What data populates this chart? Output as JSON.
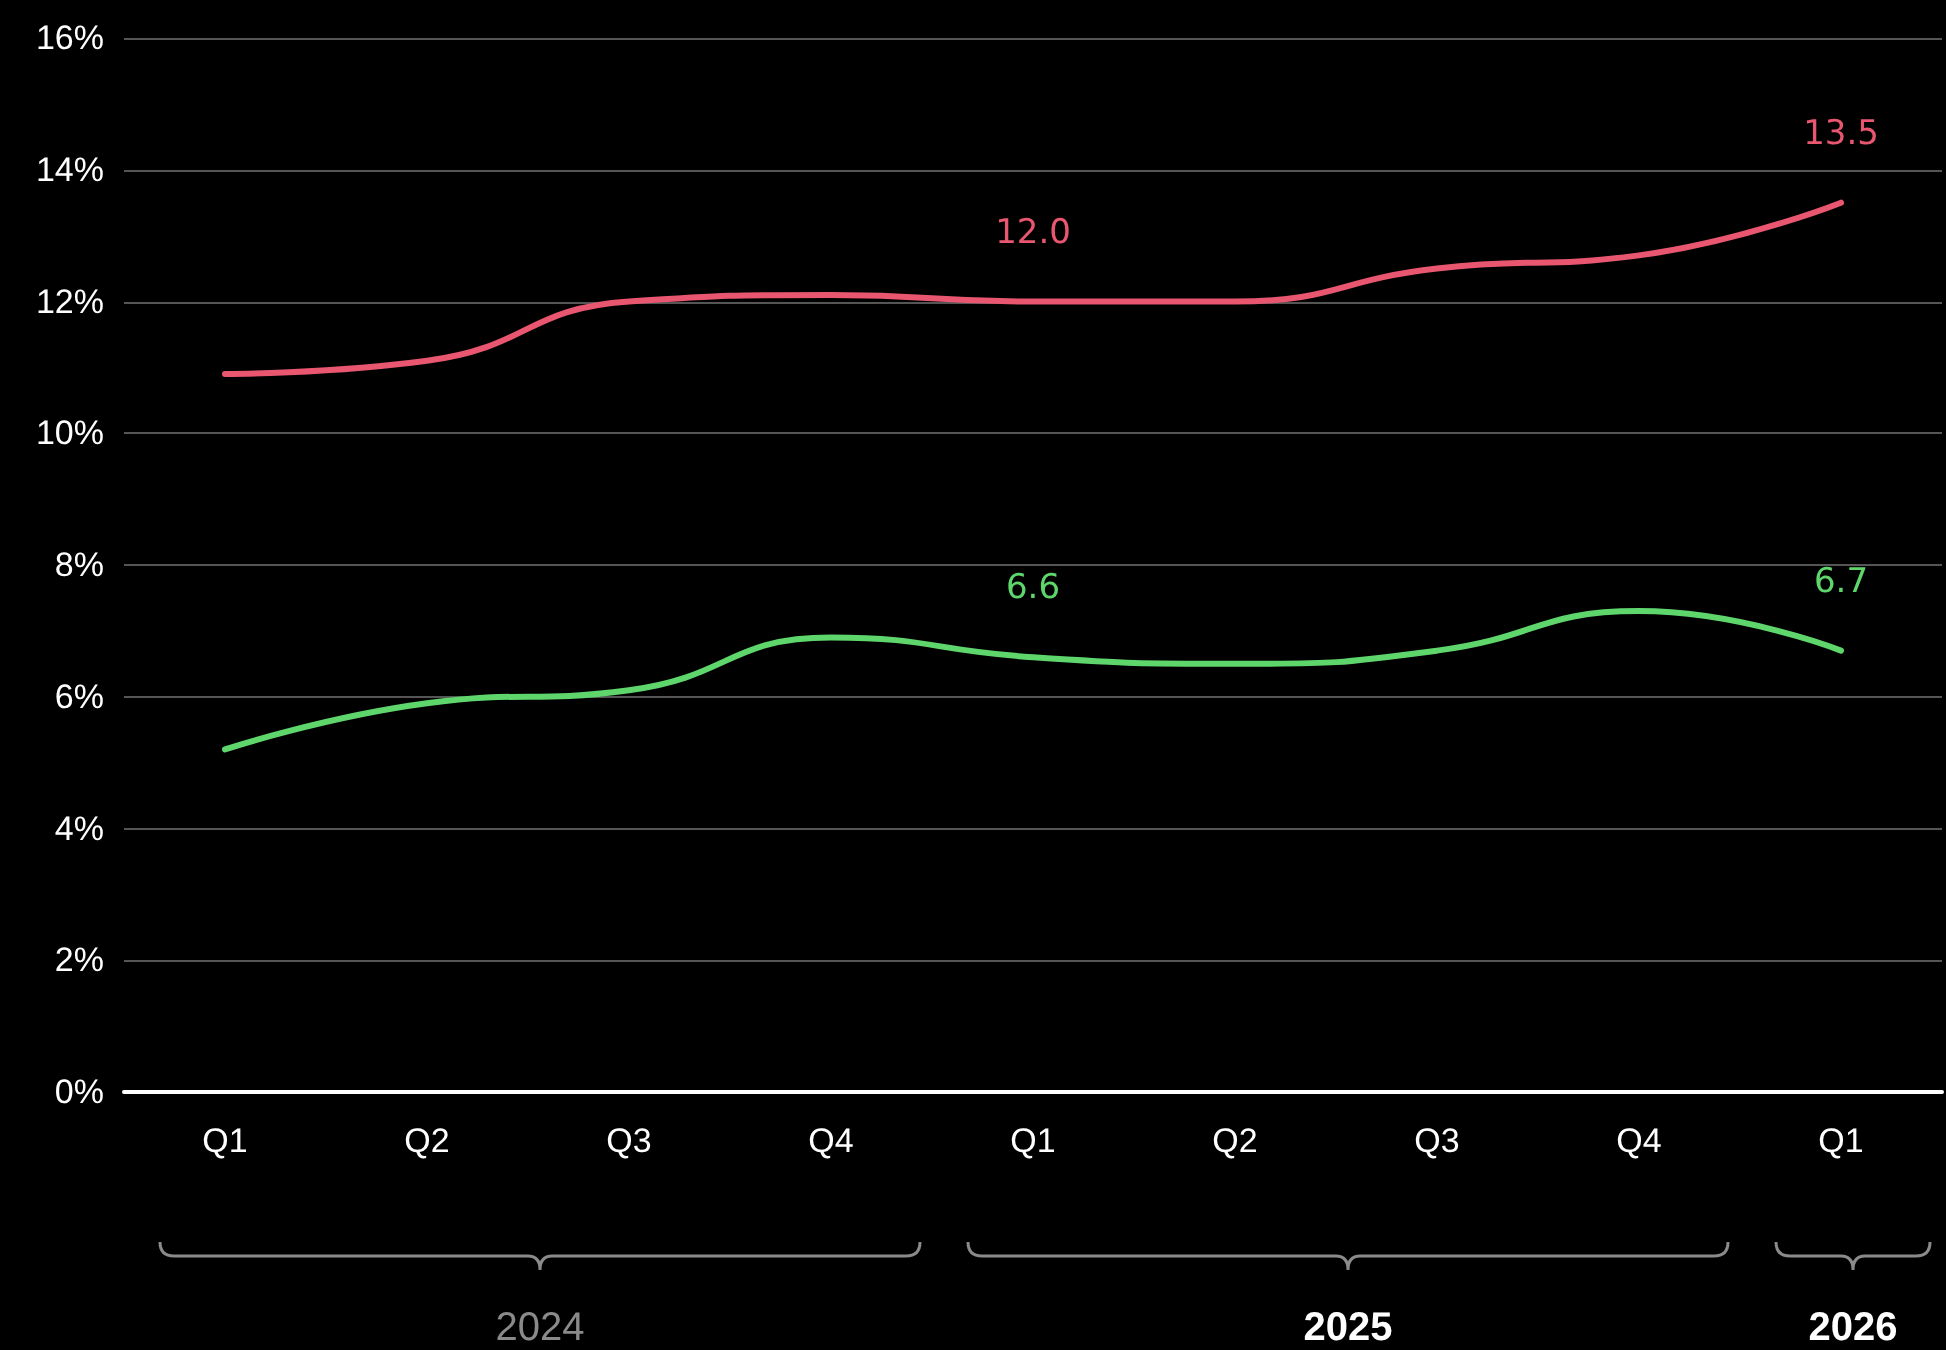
{
  "chart_data": {
    "type": "line",
    "categories": [
      "Q1",
      "Q2",
      "Q3",
      "Q4",
      "Q1",
      "Q2",
      "Q3",
      "Q4",
      "Q1"
    ],
    "series": [
      {
        "color": "#e8566f",
        "values": [
          10.9,
          11.1,
          12.0,
          12.1,
          12.0,
          12.0,
          12.5,
          12.7,
          13.5
        ],
        "value_labels": [
          null,
          null,
          null,
          null,
          "12.0",
          null,
          null,
          null,
          "13.5"
        ]
      },
      {
        "color": "#5ed66c",
        "values": [
          5.2,
          5.9,
          6.1,
          6.9,
          6.6,
          6.5,
          6.7,
          7.3,
          6.7
        ],
        "value_labels": [
          null,
          null,
          null,
          null,
          "6.6",
          null,
          null,
          null,
          "6.7"
        ]
      }
    ],
    "ylim": [
      0,
      16
    ],
    "yticks": [
      {
        "value": 0,
        "label": "0%"
      },
      {
        "value": 2,
        "label": "2%"
      },
      {
        "value": 4,
        "label": "4%"
      },
      {
        "value": 6,
        "label": "6%"
      },
      {
        "value": 8,
        "label": "8%"
      },
      {
        "value": 10,
        "label": "10%"
      },
      {
        "value": 12,
        "label": "12%"
      },
      {
        "value": 14,
        "label": "14%"
      },
      {
        "value": 16,
        "label": "16%"
      }
    ],
    "annotations": [
      "2024",
      "2025",
      "2026"
    ],
    "grid": "y",
    "marker": "none",
    "line_style": "solid"
  }
}
